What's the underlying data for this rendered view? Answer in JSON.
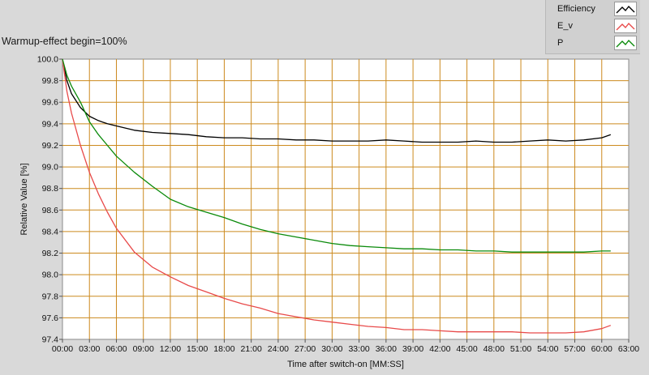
{
  "chart_data": {
    "type": "line",
    "title": "Warmup-effect begin=100%",
    "xlabel": "Time after switch-on [MM:SS]",
    "ylabel": "Relative Value [%]",
    "xlim": [
      0,
      63
    ],
    "ylim": [
      97.4,
      100.0
    ],
    "x_ticks": [
      "00:00",
      "03:00",
      "06:00",
      "09:00",
      "12:00",
      "15:00",
      "18:00",
      "21:00",
      "24:00",
      "27:00",
      "30:00",
      "33:00",
      "36:00",
      "39:00",
      "42:00",
      "45:00",
      "48:00",
      "51:00",
      "54:00",
      "57:00",
      "60:00",
      "63:00"
    ],
    "y_ticks": [
      "97.4",
      "97.6",
      "97.8",
      "98.0",
      "98.2",
      "98.4",
      "98.6",
      "98.8",
      "99.0",
      "99.2",
      "99.4",
      "99.6",
      "99.8",
      "100.0"
    ],
    "grid": true,
    "legend_position": "top-right",
    "x_unit": "minutes",
    "x": [
      0,
      0.5,
      1,
      2,
      3,
      4,
      5,
      6,
      8,
      10,
      12,
      14,
      16,
      18,
      20,
      22,
      24,
      26,
      28,
      30,
      32,
      34,
      36,
      38,
      40,
      42,
      44,
      46,
      48,
      50,
      52,
      54,
      56,
      58,
      60,
      61
    ],
    "series": [
      {
        "name": "Efficiency",
        "color": "#000000",
        "values": [
          100.0,
          99.8,
          99.68,
          99.55,
          99.47,
          99.43,
          99.4,
          99.38,
          99.34,
          99.32,
          99.31,
          99.3,
          99.28,
          99.27,
          99.27,
          99.26,
          99.26,
          99.25,
          99.25,
          99.24,
          99.24,
          99.24,
          99.25,
          99.24,
          99.23,
          99.23,
          99.23,
          99.24,
          99.23,
          99.23,
          99.24,
          99.25,
          99.24,
          99.25,
          99.27,
          99.3
        ]
      },
      {
        "name": "E_v",
        "color": "#e84a4a",
        "values": [
          100.0,
          99.7,
          99.5,
          99.2,
          98.95,
          98.75,
          98.58,
          98.43,
          98.21,
          98.07,
          97.98,
          97.9,
          97.84,
          97.78,
          97.73,
          97.69,
          97.64,
          97.61,
          97.58,
          97.56,
          97.54,
          97.52,
          97.51,
          97.49,
          97.49,
          97.48,
          97.47,
          97.47,
          97.47,
          97.47,
          97.46,
          97.46,
          97.46,
          97.47,
          97.5,
          97.53
        ]
      },
      {
        "name": "P",
        "color": "#0a8a0a",
        "values": [
          100.0,
          99.85,
          99.75,
          99.6,
          99.42,
          99.3,
          99.2,
          99.1,
          98.95,
          98.82,
          98.7,
          98.63,
          98.58,
          98.53,
          98.47,
          98.42,
          98.38,
          98.35,
          98.32,
          98.29,
          98.27,
          98.26,
          98.25,
          98.24,
          98.24,
          98.23,
          98.23,
          98.22,
          98.22,
          98.21,
          98.21,
          98.21,
          98.21,
          98.21,
          98.22,
          98.22
        ]
      }
    ]
  }
}
